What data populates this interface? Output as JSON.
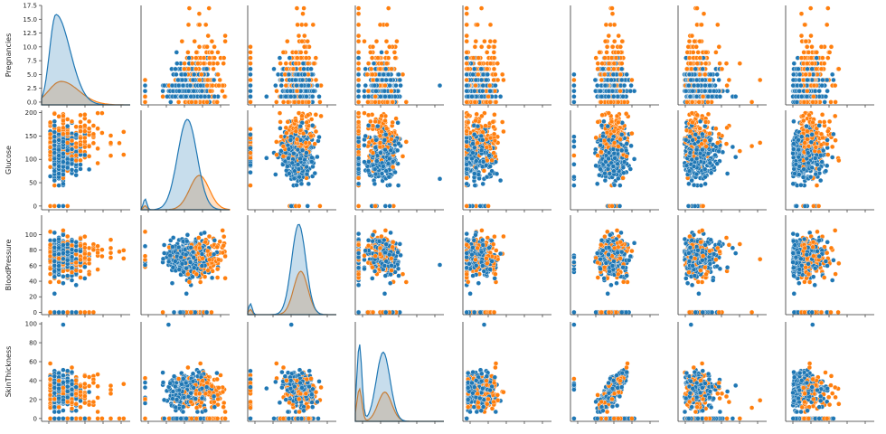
{
  "chart_data": {
    "type": "scatter",
    "variables": [
      "Pregnancies",
      "Glucose",
      "BloodPressure",
      "SkinThickness"
    ],
    "row_labels": [
      "Pregnancies",
      "Glucose",
      "BloodPressure",
      "SkinThickness"
    ],
    "row_ranges": [
      [
        -0.5,
        17.5
      ],
      [
        -8,
        205
      ],
      [
        -3,
        125
      ],
      [
        -3,
        102
      ]
    ],
    "row_ticks": [
      [
        "0.0",
        "2.5",
        "5.0",
        "7.5",
        "10.0",
        "12.5",
        "15.0",
        "17.5"
      ],
      [
        "0",
        "50",
        "100",
        "150",
        "200"
      ],
      [
        "0",
        "20",
        "40",
        "60",
        "80",
        "100"
      ],
      [
        "0",
        "20",
        "40",
        "60",
        "80",
        "100"
      ]
    ],
    "grid": false,
    "legend": "none",
    "hue_colors": [
      "#1f77b4",
      "#ff7f0e"
    ],
    "diagonal": "kde",
    "columns_visible": 8,
    "kde_peaks": {
      "Pregnancies": [
        {
          "mode": 1.3,
          "peak": 1.0,
          "color": "#1f77b4"
        },
        {
          "mode": 2.5,
          "peak": 0.26,
          "color": "#ff7f0e"
        }
      ],
      "Glucose": [
        {
          "mode": 105,
          "peak": 1.0,
          "color": "#1f77b4"
        },
        {
          "mode": 135,
          "peak": 0.38,
          "color": "#ff7f0e"
        }
      ],
      "BloodPressure": [
        {
          "mode": 72,
          "peak": 1.0,
          "color": "#1f77b4"
        },
        {
          "mode": 75,
          "peak": 0.48,
          "color": "#ff7f0e"
        }
      ],
      "SkinThickness": [
        {
          "mode": 30,
          "peak": 0.9,
          "color": "#1f77b4"
        },
        {
          "mode": 32,
          "peak": 0.38,
          "color": "#ff7f0e"
        }
      ]
    }
  }
}
